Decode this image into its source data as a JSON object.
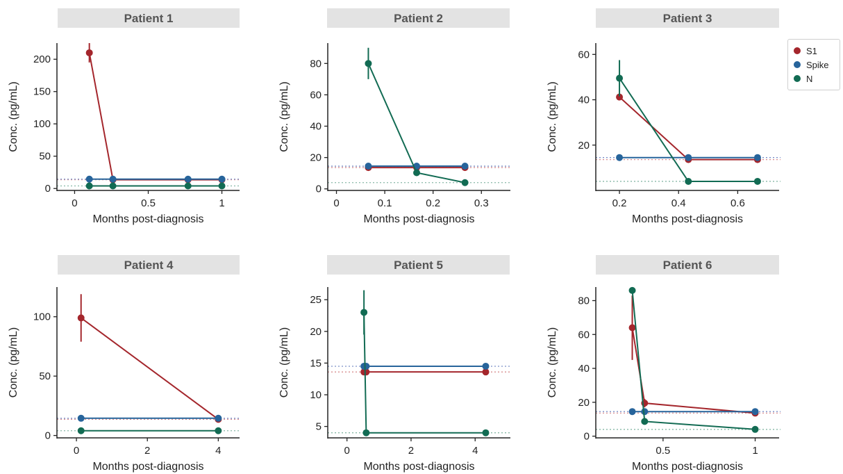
{
  "colors": {
    "S1": "#a4262c",
    "Spike": "#27649b",
    "N": "#126b53",
    "title_bg": "#e3e3e3"
  },
  "legend": {
    "items": [
      {
        "name": "S1",
        "color": "#a4262c"
      },
      {
        "name": "Spike",
        "color": "#27649b"
      },
      {
        "name": "N",
        "color": "#126b53"
      }
    ]
  },
  "chart_data": [
    {
      "type": "line",
      "title": "Patient 1",
      "xlabel": "Months post-diagnosis",
      "ylabel": "Conc.  (pg/mL)",
      "xlim": [
        -0.12,
        1.12
      ],
      "ylim": [
        -3,
        225
      ],
      "xticks": [
        0,
        0.5,
        1
      ],
      "xticklabels": [
        "0",
        "0.5",
        "1"
      ],
      "yticks": [
        0,
        50,
        100,
        150,
        200
      ],
      "yticklabels": [
        "0",
        "50",
        "100",
        "150",
        "200"
      ],
      "thresholds": [
        {
          "series": "S1",
          "value": 13.6
        },
        {
          "series": "Spike",
          "value": 14.5
        },
        {
          "series": "N",
          "value": 4
        }
      ],
      "series": [
        {
          "name": "S1",
          "x": [
            0.1,
            0.26,
            0.77,
            1.0
          ],
          "y": [
            210,
            13.6,
            13.6,
            13.6
          ],
          "err": [
            15,
            0,
            0,
            0
          ]
        },
        {
          "name": "Spike",
          "x": [
            0.1,
            0.26,
            0.77,
            1.0
          ],
          "y": [
            14.5,
            14.5,
            14.5,
            14.5
          ],
          "err": [
            0,
            0,
            0,
            0
          ]
        },
        {
          "name": "N",
          "x": [
            0.1,
            0.26,
            0.77,
            1.0
          ],
          "y": [
            4,
            4,
            4,
            4
          ],
          "err": [
            0,
            0,
            0,
            0
          ]
        }
      ]
    },
    {
      "type": "line",
      "title": "Patient 2",
      "xlabel": "Months post-diagnosis",
      "ylabel": "Conc.  (pg/mL)",
      "xlim": [
        -0.018,
        0.36
      ],
      "ylim": [
        -1,
        93
      ],
      "xticks": [
        0,
        0.1,
        0.2,
        0.3
      ],
      "xticklabels": [
        "0",
        "0.1",
        "0.2",
        "0.3"
      ],
      "yticks": [
        0,
        20,
        40,
        60,
        80
      ],
      "yticklabels": [
        "0",
        "20",
        "40",
        "60",
        "80"
      ],
      "thresholds": [
        {
          "series": "S1",
          "value": 13.6
        },
        {
          "series": "Spike",
          "value": 14.5
        },
        {
          "series": "N",
          "value": 4
        }
      ],
      "series": [
        {
          "name": "S1",
          "x": [
            0.066,
            0.166,
            0.266
          ],
          "y": [
            13.6,
            13.6,
            13.6
          ],
          "err": [
            0,
            0,
            0
          ]
        },
        {
          "name": "Spike",
          "x": [
            0.066,
            0.166,
            0.266
          ],
          "y": [
            14.5,
            14.5,
            14.5
          ],
          "err": [
            0,
            0,
            0
          ]
        },
        {
          "name": "N",
          "x": [
            0.066,
            0.166,
            0.266
          ],
          "y": [
            80,
            10.3,
            4
          ],
          "err": [
            10,
            0,
            0
          ]
        }
      ]
    },
    {
      "type": "line",
      "title": "Patient 3",
      "xlabel": "Months post-diagnosis",
      "ylabel": "Conc.  (pg/mL)",
      "xlim": [
        0.12,
        0.74
      ],
      "ylim": [
        0,
        65
      ],
      "xticks": [
        0.2,
        0.4,
        0.6
      ],
      "xticklabels": [
        "0.2",
        "0.4",
        "0.6"
      ],
      "yticks": [
        20,
        40,
        60
      ],
      "yticklabels": [
        "20",
        "40",
        "60"
      ],
      "thresholds": [
        {
          "series": "S1",
          "value": 13.6
        },
        {
          "series": "Spike",
          "value": 14.5
        },
        {
          "series": "N",
          "value": 4
        }
      ],
      "series": [
        {
          "name": "S1",
          "x": [
            0.2,
            0.433,
            0.667
          ],
          "y": [
            41.2,
            13.6,
            13.6
          ],
          "err": [
            0,
            0,
            0
          ]
        },
        {
          "name": "Spike",
          "x": [
            0.2,
            0.433,
            0.667
          ],
          "y": [
            14.5,
            14.5,
            14.5
          ],
          "err": [
            0,
            0,
            0
          ]
        },
        {
          "name": "N",
          "x": [
            0.2,
            0.433,
            0.667
          ],
          "y": [
            49.5,
            4,
            4
          ],
          "err": [
            8,
            0,
            0
          ]
        }
      ]
    },
    {
      "type": "line",
      "title": "Patient 4",
      "xlabel": "Months post-diagnosis",
      "ylabel": "Conc.  (pg/mL)",
      "xlim": [
        -0.55,
        4.6
      ],
      "ylim": [
        -2,
        125
      ],
      "xticks": [
        0,
        2,
        4
      ],
      "xticklabels": [
        "0",
        "2",
        "4"
      ],
      "yticks": [
        0,
        50,
        100
      ],
      "yticklabels": [
        "0",
        "50",
        "100"
      ],
      "thresholds": [
        {
          "series": "S1",
          "value": 13.6
        },
        {
          "series": "Spike",
          "value": 14.5
        },
        {
          "series": "N",
          "value": 4
        }
      ],
      "series": [
        {
          "name": "S1",
          "x": [
            0.13,
            4.0
          ],
          "y": [
            99,
            13.6
          ],
          "err": [
            20,
            0
          ]
        },
        {
          "name": "Spike",
          "x": [
            0.13,
            4.0
          ],
          "y": [
            14.5,
            14.5
          ],
          "err": [
            0,
            0
          ]
        },
        {
          "name": "N",
          "x": [
            0.13,
            4.0
          ],
          "y": [
            4,
            4
          ],
          "err": [
            0,
            0
          ]
        }
      ]
    },
    {
      "type": "line",
      "title": "Patient 5",
      "xlabel": "Months post-diagnosis",
      "ylabel": "Conc.  (pg/mL)",
      "xlim": [
        -0.6,
        5.1
      ],
      "ylim": [
        3.2,
        27
      ],
      "xticks": [
        0,
        2,
        4
      ],
      "xticklabels": [
        "0",
        "2",
        "4"
      ],
      "yticks": [
        5,
        10,
        15,
        20,
        25
      ],
      "yticklabels": [
        "5",
        "10",
        "15",
        "20",
        "25"
      ],
      "thresholds": [
        {
          "series": "S1",
          "value": 13.6
        },
        {
          "series": "Spike",
          "value": 14.5
        },
        {
          "series": "N",
          "value": 4
        }
      ],
      "series": [
        {
          "name": "S1",
          "x": [
            0.53,
            0.6,
            4.33
          ],
          "y": [
            13.6,
            13.6,
            13.6
          ],
          "err": [
            0,
            0,
            0
          ]
        },
        {
          "name": "Spike",
          "x": [
            0.53,
            0.6,
            4.33
          ],
          "y": [
            14.5,
            14.5,
            14.5
          ],
          "err": [
            0,
            0,
            0
          ]
        },
        {
          "name": "N",
          "x": [
            0.53,
            0.6,
            4.33
          ],
          "y": [
            23,
            4,
            4
          ],
          "err": [
            3.5,
            0,
            0
          ]
        }
      ]
    },
    {
      "type": "line",
      "title": "Patient 6",
      "xlabel": "Months post-diagnosis",
      "ylabel": "Conc.  (pg/mL)",
      "xlim": [
        0.135,
        1.13
      ],
      "ylim": [
        -1,
        88
      ],
      "xticks": [
        0.5,
        1
      ],
      "xticklabels": [
        "0.5",
        "1"
      ],
      "yticks": [
        0,
        20,
        40,
        60,
        80
      ],
      "yticklabels": [
        "0",
        "20",
        "40",
        "60",
        "80"
      ],
      "thresholds": [
        {
          "series": "S1",
          "value": 13.6
        },
        {
          "series": "Spike",
          "value": 14.5
        },
        {
          "series": "N",
          "value": 4
        }
      ],
      "series": [
        {
          "name": "S1",
          "x": [
            0.333,
            0.4,
            1.0
          ],
          "y": [
            64,
            19.5,
            13.6
          ],
          "err": [
            19,
            2.5,
            0
          ]
        },
        {
          "name": "Spike",
          "x": [
            0.333,
            0.4,
            1.0
          ],
          "y": [
            14.5,
            14.5,
            14.5
          ],
          "err": [
            0,
            0,
            0
          ]
        },
        {
          "name": "N",
          "x": [
            0.333,
            0.4,
            1.0
          ],
          "y": [
            86,
            8.7,
            4
          ],
          "err": [
            0,
            0,
            0
          ]
        }
      ]
    }
  ]
}
